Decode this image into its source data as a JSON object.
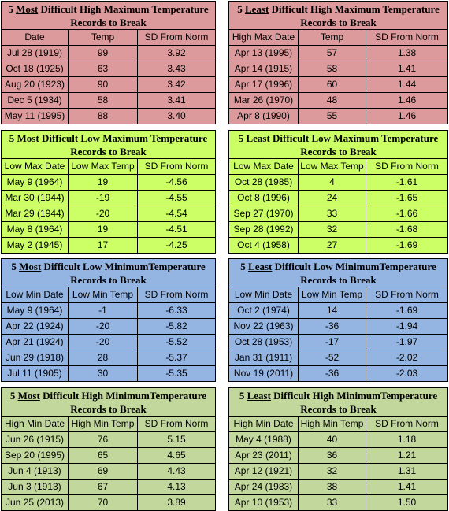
{
  "tables": [
    {
      "title_num": "5",
      "title_key": "Most",
      "title_rest": " Difficult High Maximum Temperature",
      "title_line2": "Records to Break",
      "headers": [
        "Date",
        "Temp",
        "SD From Norm"
      ],
      "rows": [
        [
          "Jul 28 (1919)",
          "99",
          "3.92"
        ],
        [
          "Oct 18 (1925)",
          "63",
          "3.43"
        ],
        [
          "Aug 20 (1923)",
          "90",
          "3.42"
        ],
        [
          "Dec 5 (1934)",
          "58",
          "3.41"
        ],
        [
          "May 11 (1995)",
          "88",
          "3.40"
        ]
      ]
    },
    {
      "title_num": "5",
      "title_key": "Least",
      "title_rest": " Difficult High Maximum Temperature",
      "title_line2": "Records to Break",
      "headers": [
        "High Max Date",
        "Temp",
        "SD From Norm"
      ],
      "rows": [
        [
          "Apr 13 (1995)",
          "57",
          "1.38"
        ],
        [
          "Apr 14 (1915)",
          "58",
          "1.41"
        ],
        [
          "Apr 17 (1996)",
          "60",
          "1.44"
        ],
        [
          "Mar 26 (1970)",
          "48",
          "1.46"
        ],
        [
          "Apr 8 (1990)",
          "55",
          "1.46"
        ]
      ]
    },
    {
      "title_num": "5",
      "title_key": "Most",
      "title_rest": " Difficult Low Maximum Temperature",
      "title_line2": "Records to Break",
      "headers": [
        "Low Max Date",
        "Low Max Temp",
        "SD From Norm"
      ],
      "rows": [
        [
          "May 9 (1964)",
          "19",
          "-4.56"
        ],
        [
          "Mar 30 (1944)",
          "-19",
          "-4.55"
        ],
        [
          "Mar 29 (1944)",
          "-20",
          "-4.54"
        ],
        [
          "May 8 (1964)",
          "19",
          "-4.51"
        ],
        [
          "May 2 (1945)",
          "17",
          "-4.25"
        ]
      ]
    },
    {
      "title_num": "5",
      "title_key": "Least",
      "title_rest": " Difficult Low Maximum Temperature",
      "title_line2": "Records to Break",
      "headers": [
        "Low Max Date",
        "Low Max Temp",
        "SD From Norm"
      ],
      "rows": [
        [
          "Oct 28 (1985)",
          "4",
          "-1.61"
        ],
        [
          "Oct 8 (1996)",
          "24",
          "-1.65"
        ],
        [
          "Sep 27 (1970)",
          "33",
          "-1.66"
        ],
        [
          "Sep 28 (1992)",
          "32",
          "-1.68"
        ],
        [
          "Oct 4 (1958)",
          "27",
          "-1.69"
        ]
      ]
    },
    {
      "title_num": "5",
      "title_key": "Most",
      "title_rest": " Difficult Low MinimumTemperature",
      "title_line2": "Records to Break",
      "headers": [
        "Low Min Date",
        "Low Min Temp",
        "SD From Norm"
      ],
      "rows": [
        [
          "May 9 (1964)",
          "-1",
          "-6.33"
        ],
        [
          "Apr 22 (1924)",
          "-20",
          "-5.82"
        ],
        [
          "Apr 21 (1924)",
          "-20",
          "-5.52"
        ],
        [
          "Jun 29 (1918)",
          "28",
          "-5.37"
        ],
        [
          "Jul 11 (1905)",
          "30",
          "-5.35"
        ]
      ]
    },
    {
      "title_num": "5",
      "title_key": "Least",
      "title_rest": " Difficult Low MinimumTemperature",
      "title_line2": "Records to Break",
      "headers": [
        "Low Min Date",
        "Low Min Temp",
        "SD From Norm"
      ],
      "rows": [
        [
          "Oct 2 (1974)",
          "14",
          "-1.69"
        ],
        [
          "Nov 22 (1963)",
          "-36",
          "-1.94"
        ],
        [
          "Oct 28 (1953)",
          "-17",
          "-1.97"
        ],
        [
          "Jan 31 (1911)",
          "-52",
          "-2.02"
        ],
        [
          "Nov 19 (2011)",
          "-36",
          "-2.03"
        ]
      ]
    },
    {
      "title_num": "5",
      "title_key": "Most",
      "title_rest": " Difficult High MinimumTemperature",
      "title_line2": "Records to Break",
      "headers": [
        "High Min Date",
        "High Min Temp",
        "SD From Norm"
      ],
      "rows": [
        [
          "Jun 26 (1915)",
          "76",
          "5.15"
        ],
        [
          "Sep 20 (1995)",
          "65",
          "4.65"
        ],
        [
          "Jun 4 (1913)",
          "69",
          "4.43"
        ],
        [
          "Jun 3 (1913)",
          "67",
          "4.13"
        ],
        [
          "Jun 25 (2013)",
          "70",
          "3.89"
        ]
      ]
    },
    {
      "title_num": "5",
      "title_key": "Least",
      "title_rest": " Difficult High MinimumTemperature",
      "title_line2": "Records to Break",
      "headers": [
        "High Min Date",
        "High Min Temp",
        "SD From Norm"
      ],
      "rows": [
        [
          "May 4 (1988)",
          "40",
          "1.18"
        ],
        [
          "Apr 23 (2011)",
          "36",
          "1.21"
        ],
        [
          "Apr 12 (1921)",
          "32",
          "1.31"
        ],
        [
          "Apr 24 (1983)",
          "38",
          "1.41"
        ],
        [
          "Apr 10 (1953)",
          "33",
          "1.50"
        ]
      ]
    }
  ]
}
